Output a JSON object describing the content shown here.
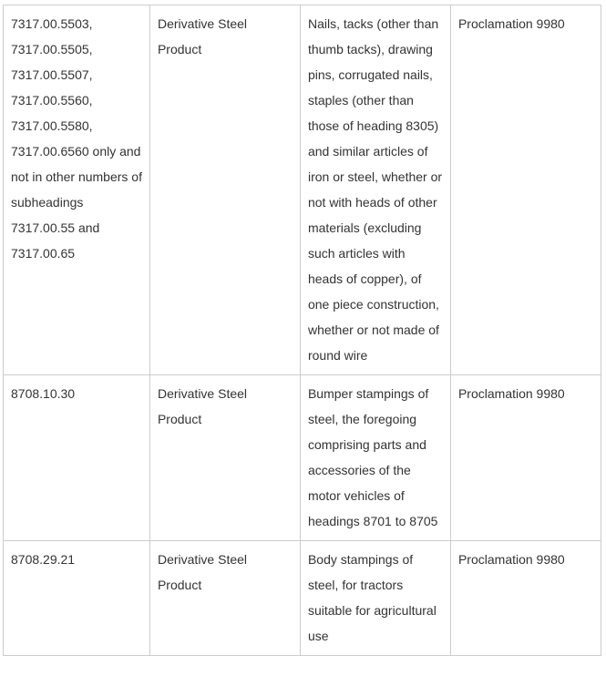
{
  "table": {
    "rows": [
      {
        "code": "7317.00.5503, 7317.00.5505, 7317.00.5507, 7317.00.5560, 7317.00.5580, 7317.00.6560 only and not in other numbers of subheadings 7317.00.55 and 7317.00.65",
        "type": "Derivative Steel Product",
        "description": "Nails, tacks (other than thumb tacks), drawing pins, corrugated nails, staples (other than those of heading 8305) and similar articles of iron or steel, whether or not with heads of other materials (excluding such articles with heads of copper), of one piece construction, whether or not made of round wire",
        "authority": "Proclamation 9980"
      },
      {
        "code": "8708.10.30",
        "type": "Derivative Steel Product",
        "description": "Bumper stampings of steel, the foregoing comprising parts and accessories of the motor vehicles of headings 8701 to 8705",
        "authority": "Proclamation 9980"
      },
      {
        "code": "8708.29.21",
        "type": "Derivative Steel Product",
        "description": "Body stampings of steel, for tractors suitable for agricultural use",
        "authority": "Proclamation 9980"
      }
    ]
  }
}
